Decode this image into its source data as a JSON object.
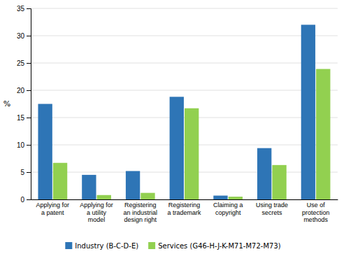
{
  "chart_data": {
    "type": "bar",
    "categories": [
      "Applying for\na patent",
      "Applying for\na utility\nmodel",
      "Registering\nan industrial\ndesign right",
      "Registering\na trademark",
      "Claiming a\ncopyright",
      "Using trade\nsecrets",
      "Use of\nprotection\nmethods"
    ],
    "series": [
      {
        "name": "Industry (B-C-D-E)",
        "color": "#2E75B6",
        "values": [
          17.5,
          4.5,
          5.2,
          18.8,
          0.7,
          9.4,
          32.0
        ]
      },
      {
        "name": "Services (G46-H-J-K-M71-M72-M73)",
        "color": "#92D050",
        "values": [
          6.7,
          0.8,
          1.2,
          16.7,
          0.5,
          6.3,
          23.9
        ]
      }
    ],
    "ylabel": "%",
    "ylim": [
      0,
      35
    ],
    "yticks": [
      0,
      5,
      10,
      15,
      20,
      25,
      30,
      35
    ],
    "grid": true,
    "legend": "bottom"
  }
}
